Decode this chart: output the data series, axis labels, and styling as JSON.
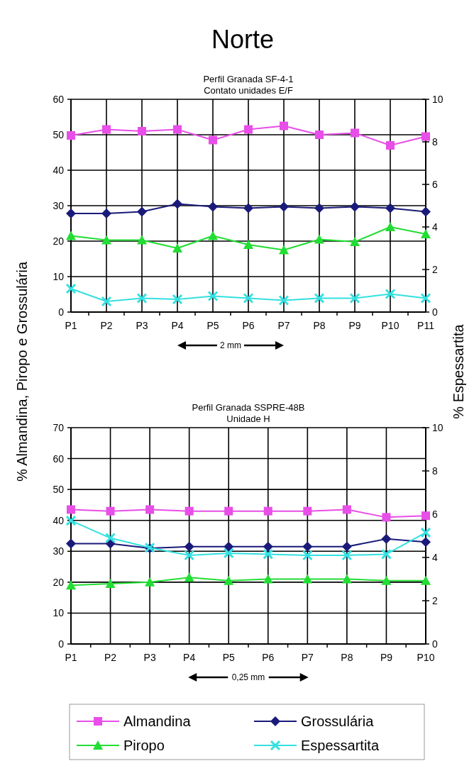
{
  "chart_data": [
    {
      "type": "line",
      "title": "Perfil Granada SF-4-1",
      "subtitle": "Contato unidades E/F",
      "ylabel": "% Almandina, Piropo e Grossulária",
      "y2label": "% Espessartita",
      "annotations": [
        "Norte",
        "2 mm"
      ],
      "categories": [
        "P1",
        "P2",
        "P3",
        "P4",
        "P5",
        "P6",
        "P7",
        "P8",
        "P9",
        "P10",
        "P11"
      ],
      "series": [
        {
          "color": "#e84ee8",
          "marker": "square",
          "values": [
            49.8,
            51.5,
            51,
            51.5,
            48.5,
            51.5,
            52.5,
            50,
            50.5,
            47,
            49.5
          ]
        },
        {
          "color": "#1a1a7a",
          "marker": "diamond",
          "values": [
            27.8,
            27.8,
            28.3,
            30.5,
            29.7,
            29.3,
            29.7,
            29.3,
            29.7,
            29.3,
            28.3
          ]
        },
        {
          "color": "#22dd33",
          "marker": "triangle",
          "values": [
            21.5,
            20.3,
            20.3,
            18,
            21.5,
            19,
            17.5,
            20.5,
            19.8,
            24,
            22
          ]
        },
        {
          "color": "#33e0e0",
          "marker": "cross",
          "axis": "y2",
          "values": [
            1.1,
            0.5,
            0.65,
            0.6,
            0.75,
            0.65,
            0.55,
            0.65,
            0.65,
            0.85,
            0.65
          ]
        }
      ],
      "ylim": [
        0,
        60
      ],
      "yticks": [
        0,
        10,
        20,
        30,
        40,
        50,
        60
      ],
      "y2lim": [
        0,
        10
      ],
      "y2ticks": [
        0,
        2,
        4,
        6,
        8,
        10
      ],
      "grid": true
    },
    {
      "type": "line",
      "title": "Perfil Granada SSPRE-48B",
      "subtitle": "Unidade H",
      "annotations": [
        "0,25 mm"
      ],
      "categories": [
        "P1",
        "P2",
        "P3",
        "P4",
        "P5",
        "P6",
        "P7",
        "P8",
        "P9",
        "P10"
      ],
      "series": [
        {
          "name": "Almandina",
          "color": "#e84ee8",
          "marker": "square",
          "values": [
            43.5,
            43,
            43.5,
            43,
            43,
            43,
            43,
            43.5,
            41,
            41.5
          ]
        },
        {
          "name": "Grossulária",
          "color": "#1a1a7a",
          "marker": "diamond",
          "values": [
            32.5,
            32.5,
            31,
            31.5,
            31.5,
            31.5,
            31.5,
            31.5,
            34,
            33
          ]
        },
        {
          "name": "Piropo",
          "color": "#22dd33",
          "marker": "triangle",
          "values": [
            19,
            19.5,
            20,
            21.5,
            20.5,
            21,
            21,
            21,
            20.5,
            20.5
          ]
        },
        {
          "name": "Espessartita",
          "color": "#33e0e0",
          "marker": "cross",
          "axis": "y2",
          "values": [
            5.7,
            4.9,
            4.45,
            4.1,
            4.2,
            4.15,
            4.1,
            4.1,
            4.15,
            5.15
          ]
        }
      ],
      "ylim": [
        0,
        70
      ],
      "yticks": [
        0,
        10,
        20,
        30,
        40,
        50,
        60,
        70
      ],
      "y2lim": [
        0,
        10
      ],
      "y2ticks": [
        0,
        2,
        4,
        6,
        8,
        10
      ],
      "grid": true,
      "legend": "bottom"
    }
  ]
}
